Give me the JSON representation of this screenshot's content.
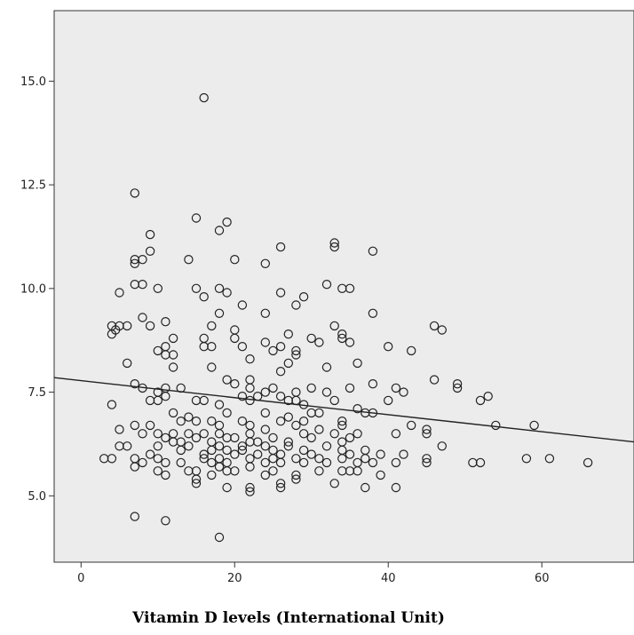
{
  "chart_data": {
    "type": "scatter",
    "title": "",
    "xlabel": "Vitamin D levels (International Unit)",
    "ylabel": "",
    "xlim": [
      -3.5,
      72
    ],
    "ylim": [
      3.4,
      16.7
    ],
    "x_ticks": [
      {
        "value": 0,
        "label": "0"
      },
      {
        "value": 20,
        "label": "20"
      },
      {
        "value": 40,
        "label": "40"
      },
      {
        "value": 60,
        "label": "60"
      }
    ],
    "y_ticks": [
      {
        "value": 5.0,
        "label": "5.0"
      },
      {
        "value": 7.5,
        "label": "7.5"
      },
      {
        "value": 10.0,
        "label": "10.0"
      },
      {
        "value": 12.5,
        "label": "12.5"
      },
      {
        "value": 15.0,
        "label": "15.0"
      }
    ],
    "grid": false,
    "colors": {
      "plot_background": "#ececec",
      "marker_stroke": "#222222",
      "line": "#222222"
    },
    "fit_line": {
      "type": "linear",
      "x": [
        -3.5,
        72
      ],
      "y": [
        7.85,
        6.3
      ]
    },
    "points": [
      [
        16,
        14.6
      ],
      [
        7,
        12.3
      ],
      [
        15,
        11.7
      ],
      [
        19,
        11.6
      ],
      [
        18,
        11.4
      ],
      [
        9,
        11.3
      ],
      [
        26,
        11.0
      ],
      [
        33,
        11.1
      ],
      [
        33,
        11.0
      ],
      [
        38,
        10.9
      ],
      [
        9,
        10.9
      ],
      [
        7,
        10.7
      ],
      [
        8,
        10.7
      ],
      [
        7,
        10.6
      ],
      [
        14,
        10.7
      ],
      [
        20,
        10.7
      ],
      [
        24,
        10.6
      ],
      [
        7,
        10.1
      ],
      [
        8,
        10.1
      ],
      [
        10,
        10.0
      ],
      [
        15,
        10.0
      ],
      [
        18,
        10.0
      ],
      [
        19,
        9.9
      ],
      [
        26,
        9.9
      ],
      [
        29,
        9.8
      ],
      [
        32,
        10.1
      ],
      [
        34,
        10.0
      ],
      [
        35,
        10.0
      ],
      [
        5,
        9.9
      ],
      [
        16,
        9.8
      ],
      [
        28,
        9.6
      ],
      [
        21,
        9.6
      ],
      [
        18,
        9.4
      ],
      [
        24,
        9.4
      ],
      [
        38,
        9.4
      ],
      [
        8,
        9.3
      ],
      [
        11,
        9.2
      ],
      [
        4,
        9.1
      ],
      [
        5,
        9.1
      ],
      [
        6,
        9.1
      ],
      [
        4,
        8.9
      ],
      [
        4.5,
        9.0
      ],
      [
        9,
        9.1
      ],
      [
        20,
        9.0
      ],
      [
        33,
        9.1
      ],
      [
        46,
        9.1
      ],
      [
        47,
        9.0
      ],
      [
        17,
        9.1
      ],
      [
        12,
        8.8
      ],
      [
        16,
        8.8
      ],
      [
        16,
        8.6
      ],
      [
        17,
        8.6
      ],
      [
        20,
        8.8
      ],
      [
        21,
        8.6
      ],
      [
        24,
        8.7
      ],
      [
        26,
        8.6
      ],
      [
        28,
        8.5
      ],
      [
        31,
        8.7
      ],
      [
        34,
        8.8
      ],
      [
        35,
        8.7
      ],
      [
        40,
        8.6
      ],
      [
        43,
        8.5
      ],
      [
        10,
        8.5
      ],
      [
        11,
        8.6
      ],
      [
        11,
        8.4
      ],
      [
        12,
        8.4
      ],
      [
        25,
        8.5
      ],
      [
        27,
        8.9
      ],
      [
        30,
        8.8
      ],
      [
        34,
        8.9
      ],
      [
        6,
        8.2
      ],
      [
        12,
        8.1
      ],
      [
        17,
        8.1
      ],
      [
        22,
        8.3
      ],
      [
        27,
        8.2
      ],
      [
        32,
        8.1
      ],
      [
        36,
        8.2
      ],
      [
        26,
        8.0
      ],
      [
        28,
        8.4
      ],
      [
        7,
        7.7
      ],
      [
        8,
        7.6
      ],
      [
        10,
        7.5
      ],
      [
        11,
        7.6
      ],
      [
        13,
        7.6
      ],
      [
        19,
        7.8
      ],
      [
        20,
        7.7
      ],
      [
        22,
        7.8
      ],
      [
        22,
        7.6
      ],
      [
        24,
        7.5
      ],
      [
        25,
        7.6
      ],
      [
        28,
        7.5
      ],
      [
        30,
        7.6
      ],
      [
        32,
        7.5
      ],
      [
        35,
        7.6
      ],
      [
        38,
        7.7
      ],
      [
        41,
        7.6
      ],
      [
        42,
        7.5
      ],
      [
        46,
        7.8
      ],
      [
        49,
        7.6
      ],
      [
        49,
        7.7
      ],
      [
        53,
        7.4
      ],
      [
        4,
        7.2
      ],
      [
        9,
        7.3
      ],
      [
        10,
        7.3
      ],
      [
        11,
        7.4
      ],
      [
        15,
        7.3
      ],
      [
        18,
        7.2
      ],
      [
        21,
        7.4
      ],
      [
        22,
        7.3
      ],
      [
        23,
        7.4
      ],
      [
        26,
        7.4
      ],
      [
        28,
        7.3
      ],
      [
        29,
        7.2
      ],
      [
        33,
        7.3
      ],
      [
        36,
        7.1
      ],
      [
        40,
        7.3
      ],
      [
        52,
        7.3
      ],
      [
        16,
        7.3
      ],
      [
        27,
        7.3
      ],
      [
        12,
        7.0
      ],
      [
        14,
        6.9
      ],
      [
        17,
        6.8
      ],
      [
        19,
        7.0
      ],
      [
        21,
        6.8
      ],
      [
        24,
        7.0
      ],
      [
        27,
        6.9
      ],
      [
        30,
        7.0
      ],
      [
        31,
        7.0
      ],
      [
        34,
        6.8
      ],
      [
        37,
        7.0
      ],
      [
        38,
        7.0
      ],
      [
        43,
        6.7
      ],
      [
        54,
        6.7
      ],
      [
        59,
        6.7
      ],
      [
        7,
        6.7
      ],
      [
        9,
        6.7
      ],
      [
        13,
        6.8
      ],
      [
        15,
        6.8
      ],
      [
        18,
        6.7
      ],
      [
        22,
        6.7
      ],
      [
        26,
        6.8
      ],
      [
        28,
        6.7
      ],
      [
        29,
        6.8
      ],
      [
        34,
        6.7
      ],
      [
        24,
        6.6
      ],
      [
        31,
        6.6
      ],
      [
        5,
        6.6
      ],
      [
        8,
        6.5
      ],
      [
        10,
        6.5
      ],
      [
        11,
        6.4
      ],
      [
        12,
        6.5
      ],
      [
        13,
        6.3
      ],
      [
        14,
        6.5
      ],
      [
        15,
        6.4
      ],
      [
        16,
        6.5
      ],
      [
        17,
        6.3
      ],
      [
        18,
        6.5
      ],
      [
        19,
        6.4
      ],
      [
        20,
        6.4
      ],
      [
        21,
        6.2
      ],
      [
        22,
        6.5
      ],
      [
        23,
        6.3
      ],
      [
        25,
        6.4
      ],
      [
        27,
        6.3
      ],
      [
        29,
        6.5
      ],
      [
        30,
        6.4
      ],
      [
        33,
        6.5
      ],
      [
        34,
        6.3
      ],
      [
        35,
        6.4
      ],
      [
        36,
        6.5
      ],
      [
        41,
        6.5
      ],
      [
        45,
        6.6
      ],
      [
        45,
        6.5
      ],
      [
        5,
        6.2
      ],
      [
        6,
        6.2
      ],
      [
        9,
        6.0
      ],
      [
        10,
        6.2
      ],
      [
        12,
        6.3
      ],
      [
        13,
        6.1
      ],
      [
        14,
        6.2
      ],
      [
        16,
        6.0
      ],
      [
        17,
        6.1
      ],
      [
        18,
        6.2
      ],
      [
        19,
        6.1
      ],
      [
        20,
        6.0
      ],
      [
        21,
        6.1
      ],
      [
        22,
        6.3
      ],
      [
        23,
        6.0
      ],
      [
        24,
        6.2
      ],
      [
        25,
        6.1
      ],
      [
        26,
        6.0
      ],
      [
        27,
        6.2
      ],
      [
        29,
        6.1
      ],
      [
        30,
        6.0
      ],
      [
        32,
        6.2
      ],
      [
        34,
        6.1
      ],
      [
        35,
        6.0
      ],
      [
        37,
        6.1
      ],
      [
        39,
        6.0
      ],
      [
        42,
        6.0
      ],
      [
        47,
        6.2
      ],
      [
        3,
        5.9
      ],
      [
        4,
        5.9
      ],
      [
        7,
        5.9
      ],
      [
        8,
        5.8
      ],
      [
        10,
        5.9
      ],
      [
        11,
        5.8
      ],
      [
        13,
        5.8
      ],
      [
        16,
        5.9
      ],
      [
        17,
        5.8
      ],
      [
        18,
        5.9
      ],
      [
        19,
        5.8
      ],
      [
        22,
        5.9
      ],
      [
        24,
        5.8
      ],
      [
        25,
        5.9
      ],
      [
        26,
        5.8
      ],
      [
        28,
        5.9
      ],
      [
        29,
        5.8
      ],
      [
        31,
        5.9
      ],
      [
        32,
        5.8
      ],
      [
        34,
        5.9
      ],
      [
        36,
        5.8
      ],
      [
        37,
        5.9
      ],
      [
        38,
        5.8
      ],
      [
        41,
        5.8
      ],
      [
        45,
        5.9
      ],
      [
        45,
        5.8
      ],
      [
        51,
        5.8
      ],
      [
        52,
        5.8
      ],
      [
        58,
        5.9
      ],
      [
        61,
        5.9
      ],
      [
        66,
        5.8
      ],
      [
        7,
        5.7
      ],
      [
        10,
        5.6
      ],
      [
        11,
        5.5
      ],
      [
        14,
        5.6
      ],
      [
        15,
        5.6
      ],
      [
        15,
        5.4
      ],
      [
        15,
        5.3
      ],
      [
        17,
        5.5
      ],
      [
        18,
        5.7
      ],
      [
        19,
        5.6
      ],
      [
        20,
        5.6
      ],
      [
        22,
        5.7
      ],
      [
        24,
        5.5
      ],
      [
        25,
        5.6
      ],
      [
        26,
        5.3
      ],
      [
        26,
        5.2
      ],
      [
        28,
        5.4
      ],
      [
        28,
        5.5
      ],
      [
        31,
        5.6
      ],
      [
        33,
        5.3
      ],
      [
        34,
        5.6
      ],
      [
        35,
        5.6
      ],
      [
        36,
        5.6
      ],
      [
        39,
        5.5
      ],
      [
        19,
        5.2
      ],
      [
        22,
        5.2
      ],
      [
        22,
        5.1
      ],
      [
        37,
        5.2
      ],
      [
        41,
        5.2
      ],
      [
        7,
        4.5
      ],
      [
        11,
        4.4
      ],
      [
        18,
        4.0
      ]
    ]
  }
}
